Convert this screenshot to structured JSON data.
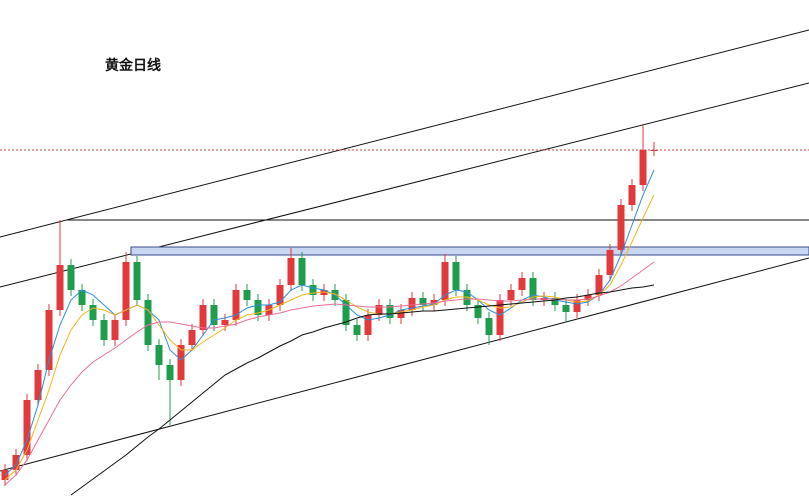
{
  "chart_data": {
    "type": "candlestick",
    "title": "黄金日线",
    "ylim": [
      0,
      500
    ],
    "up_color": "#e2393d",
    "down_color": "#1f9d4c",
    "open": [
      20,
      30,
      45,
      100,
      130,
      190,
      235,
      210,
      195,
      180,
      160,
      180,
      238,
      200,
      155,
      135,
      120,
      155,
      170,
      195,
      175,
      180,
      210,
      200,
      185,
      195,
      215,
      242,
      215,
      205,
      210,
      200,
      175,
      165,
      185,
      195,
      182,
      190,
      202,
      195,
      200,
      238,
      210,
      195,
      182,
      165,
      200,
      210,
      222,
      200,
      202,
      195,
      188,
      200,
      205,
      225,
      250,
      295,
      315,
      350
    ],
    "high": [
      36,
      51,
      106,
      136,
      196,
      280,
      241,
      216,
      201,
      186,
      186,
      248,
      244,
      206,
      161,
      141,
      161,
      176,
      201,
      201,
      186,
      216,
      216,
      206,
      201,
      221,
      252,
      248,
      221,
      216,
      216,
      206,
      181,
      191,
      201,
      201,
      196,
      208,
      208,
      206,
      246,
      244,
      216,
      201,
      188,
      206,
      216,
      228,
      228,
      208,
      208,
      201,
      206,
      211,
      231,
      256,
      301,
      321,
      375,
      358
    ],
    "low": [
      14,
      24,
      39,
      94,
      124,
      184,
      204,
      189,
      174,
      154,
      154,
      174,
      194,
      149,
      120,
      75,
      114,
      149,
      164,
      169,
      169,
      174,
      194,
      179,
      179,
      189,
      209,
      209,
      199,
      199,
      194,
      169,
      159,
      159,
      179,
      176,
      176,
      184,
      189,
      189,
      194,
      204,
      189,
      176,
      155,
      159,
      194,
      204,
      194,
      194,
      189,
      178,
      182,
      194,
      199,
      219,
      244,
      289,
      309,
      344
    ],
    "close": [
      30,
      45,
      100,
      130,
      190,
      235,
      210,
      195,
      180,
      160,
      180,
      238,
      200,
      155,
      135,
      120,
      155,
      170,
      195,
      175,
      180,
      210,
      200,
      185,
      195,
      215,
      242,
      215,
      205,
      210,
      200,
      175,
      165,
      185,
      195,
      182,
      190,
      202,
      195,
      200,
      238,
      210,
      195,
      182,
      165,
      200,
      210,
      222,
      200,
      202,
      195,
      188,
      200,
      205,
      225,
      250,
      295,
      315,
      350,
      350
    ],
    "lines": [
      {
        "color": "#2f8fd8",
        "values": [
          25,
          35,
          60,
          95,
          140,
          175,
          200,
          210,
          205,
          195,
          185,
          190,
          195,
          190,
          180,
          150,
          140,
          150,
          165,
          180,
          182,
          185,
          192,
          195,
          195,
          198,
          210,
          215,
          212,
          210,
          205,
          195,
          185,
          180,
          182,
          185,
          190,
          192,
          194,
          196,
          205,
          210,
          208,
          200,
          190,
          185,
          192,
          200,
          205,
          203,
          200,
          198,
          196,
          198,
          205,
          220,
          245,
          275,
          305,
          330
        ]
      },
      {
        "color": "#f2b61c",
        "values": [
          20,
          30,
          50,
          80,
          110,
          145,
          170,
          185,
          192,
          190,
          185,
          190,
          195,
          190,
          175,
          160,
          150,
          150,
          158,
          165,
          172,
          180,
          185,
          187,
          190,
          195,
          200,
          205,
          207,
          208,
          206,
          200,
          193,
          188,
          186,
          186,
          188,
          190,
          193,
          195,
          200,
          203,
          203,
          200,
          195,
          192,
          193,
          198,
          203,
          204,
          203,
          200,
          198,
          199,
          205,
          215,
          235,
          258,
          282,
          305
        ]
      },
      {
        "color": "#e8709a",
        "values": [
          15,
          25,
          40,
          60,
          80,
          100,
          115,
          128,
          138,
          145,
          152,
          160,
          168,
          175,
          178,
          178,
          176,
          174,
          172,
          172,
          174,
          176,
          180,
          183,
          185,
          187,
          190,
          192,
          194,
          195,
          196,
          195,
          194,
          193,
          193,
          193,
          194,
          195,
          196,
          197,
          199,
          200,
          201,
          201,
          200,
          199,
          199,
          200,
          201,
          201,
          201,
          200,
          200,
          201,
          204,
          208,
          214,
          222,
          230,
          238
        ]
      },
      {
        "color": "#111111",
        "values": [
          null,
          null,
          null,
          null,
          null,
          null,
          5,
          13,
          21,
          29,
          37,
          45,
          54,
          63,
          71,
          80,
          89,
          98,
          107,
          116,
          125,
          131,
          137,
          142,
          148,
          154,
          159,
          165,
          168,
          172,
          175,
          178,
          182,
          185,
          186,
          186,
          187,
          188,
          189,
          189,
          190,
          191,
          192,
          193,
          194,
          195,
          196,
          197,
          198,
          199,
          200,
          202,
          203,
          205,
          207,
          208,
          210,
          212,
          213,
          215
        ]
      }
    ]
  }
}
